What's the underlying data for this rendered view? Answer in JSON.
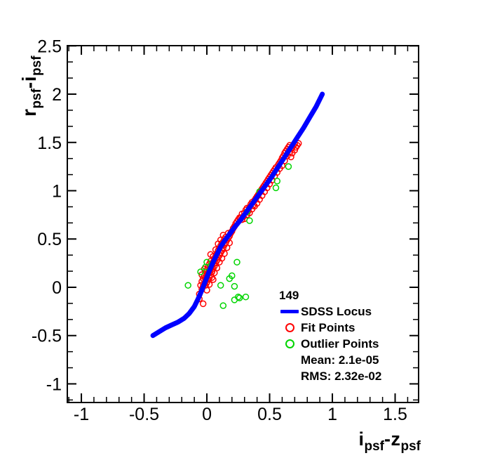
{
  "colors": {
    "locus": "#0000ff",
    "fit": "#ff0000",
    "outlier": "#00d500",
    "axis": "#000000",
    "background": "#ffffff"
  },
  "axes": {
    "x": {
      "range": [
        -1.112,
        1.687
      ],
      "major_ticks": [
        -1,
        -0.5,
        0,
        0.5,
        1,
        1.5
      ],
      "tick_labels": [
        "-1",
        "-0.5",
        "0",
        "0.5",
        "1",
        "1.5"
      ],
      "minor_step": 0.1,
      "title": {
        "base1": "i",
        "sub1": "psf",
        "base2": "-z",
        "sub2": "psf"
      }
    },
    "y": {
      "range": [
        -1.193,
        2.502
      ],
      "major_ticks": [
        2.5,
        2,
        1.5,
        1,
        0.5,
        0,
        -0.5,
        -1
      ],
      "tick_labels": [
        "2.5",
        "2",
        "1.5",
        "1",
        "0.5",
        "0",
        "-0.5",
        "-1"
      ],
      "minor_per_major": 3,
      "title": {
        "base1": "r",
        "sub1": "psf",
        "base2": "-i",
        "sub2": "psf"
      }
    }
  },
  "legend": {
    "header": "149",
    "entries": [
      {
        "label": "SDSS Locus",
        "marker": "line",
        "color": "#0000ff"
      },
      {
        "label": "Fit Points",
        "marker": "open-circle",
        "color": "#ff0000"
      },
      {
        "label": "Outlier Points",
        "marker": "open-circle",
        "color": "#00d500"
      },
      {
        "label": "Mean: 2.1e-05",
        "marker": "none"
      },
      {
        "label": "RMS: 2.32e-02",
        "marker": "none"
      }
    ]
  },
  "chart_data": {
    "type": "scatter",
    "xlabel": "i_psf - z_psf",
    "ylabel": "r_psf - i_psf",
    "xlim": [
      -1.112,
      1.687
    ],
    "ylim": [
      -1.193,
      2.502
    ],
    "grid": false,
    "legend_position": "lower-right",
    "stats": {
      "n_points": "149",
      "mean": "2.1e-05",
      "rms": "2.32e-02"
    },
    "series": [
      {
        "name": "SDSS Locus",
        "type": "line",
        "color": "#0000ff",
        "line_width": 7,
        "points": [
          [
            -0.43,
            -0.5
          ],
          [
            -0.38,
            -0.46
          ],
          [
            -0.33,
            -0.42
          ],
          [
            -0.28,
            -0.39
          ],
          [
            -0.23,
            -0.36
          ],
          [
            -0.18,
            -0.32
          ],
          [
            -0.14,
            -0.27
          ],
          [
            -0.1,
            -0.2
          ],
          [
            -0.07,
            -0.12
          ],
          [
            -0.04,
            -0.03
          ],
          [
            -0.01,
            0.07
          ],
          [
            0.02,
            0.17
          ],
          [
            0.05,
            0.26
          ],
          [
            0.08,
            0.34
          ],
          [
            0.11,
            0.42
          ],
          [
            0.14,
            0.48
          ],
          [
            0.18,
            0.55
          ],
          [
            0.22,
            0.62
          ],
          [
            0.27,
            0.7
          ],
          [
            0.32,
            0.79
          ],
          [
            0.37,
            0.88
          ],
          [
            0.42,
            0.97
          ],
          [
            0.47,
            1.06
          ],
          [
            0.52,
            1.15
          ],
          [
            0.57,
            1.25
          ],
          [
            0.62,
            1.35
          ],
          [
            0.67,
            1.45
          ],
          [
            0.72,
            1.55
          ],
          [
            0.77,
            1.65
          ],
          [
            0.82,
            1.76
          ],
          [
            0.87,
            1.87
          ],
          [
            0.92,
            2.0
          ]
        ]
      },
      {
        "name": "Fit Points",
        "type": "scatter",
        "marker": "open-circle",
        "color": "#ff0000",
        "points": [
          [
            -0.06,
            -0.07
          ],
          [
            -0.05,
            0.02
          ],
          [
            -0.04,
            -0.02
          ],
          [
            -0.04,
            0.06
          ],
          [
            -0.03,
            0.01
          ],
          [
            -0.03,
            0.09
          ],
          [
            -0.02,
            0.04
          ],
          [
            -0.02,
            0.12
          ],
          [
            -0.01,
            0.02
          ],
          [
            -0.01,
            0.08
          ],
          [
            -0.01,
            0.15
          ],
          [
            0.0,
            0.05
          ],
          [
            0.0,
            0.11
          ],
          [
            0.0,
            0.18
          ],
          [
            0.01,
            0.08
          ],
          [
            0.01,
            0.14
          ],
          [
            0.01,
            0.21
          ],
          [
            0.02,
            0.1
          ],
          [
            0.02,
            0.17
          ],
          [
            0.02,
            0.24
          ],
          [
            0.03,
            0.13
          ],
          [
            0.03,
            0.2
          ],
          [
            0.03,
            0.27
          ],
          [
            0.04,
            0.16
          ],
          [
            0.04,
            0.23
          ],
          [
            0.05,
            0.19
          ],
          [
            0.05,
            0.26
          ],
          [
            0.05,
            0.32
          ],
          [
            0.06,
            0.22
          ],
          [
            0.06,
            0.29
          ],
          [
            0.07,
            0.25
          ],
          [
            0.07,
            0.32
          ],
          [
            0.08,
            0.28
          ],
          [
            0.08,
            0.35
          ],
          [
            0.09,
            0.31
          ],
          [
            0.09,
            0.38
          ],
          [
            0.1,
            0.33
          ],
          [
            0.1,
            0.4
          ],
          [
            0.11,
            0.36
          ],
          [
            0.11,
            0.43
          ],
          [
            0.12,
            0.38
          ],
          [
            0.12,
            0.45
          ],
          [
            0.13,
            0.41
          ],
          [
            0.13,
            0.47
          ],
          [
            0.14,
            0.44
          ],
          [
            0.14,
            0.5
          ],
          [
            0.15,
            0.46
          ],
          [
            0.15,
            0.52
          ],
          [
            0.16,
            0.49
          ],
          [
            0.17,
            0.51
          ],
          [
            0.17,
            0.56
          ],
          [
            0.18,
            0.53
          ],
          [
            0.19,
            0.56
          ],
          [
            0.2,
            0.58
          ],
          [
            0.21,
            0.61
          ],
          [
            0.22,
            0.63
          ],
          [
            0.23,
            0.66
          ],
          [
            0.24,
            0.68
          ],
          [
            0.25,
            0.7
          ],
          [
            0.26,
            0.72
          ],
          [
            0.04,
            0.1
          ],
          [
            0.06,
            0.15
          ],
          [
            0.08,
            0.2
          ],
          [
            0.1,
            0.26
          ],
          [
            0.12,
            0.3
          ],
          [
            0.14,
            0.35
          ],
          [
            0.16,
            0.41
          ],
          [
            0.18,
            0.46
          ],
          [
            0.02,
            0.03
          ],
          [
            0.05,
            0.08
          ],
          [
            0.09,
            0.45
          ],
          [
            0.07,
            0.39
          ],
          [
            0.11,
            0.49
          ],
          [
            0.13,
            0.54
          ],
          [
            0.0,
            -0.03
          ],
          [
            0.03,
            0.34
          ],
          [
            -0.02,
            0.19
          ],
          [
            -0.04,
            0.13
          ],
          [
            -0.06,
            -0.12
          ],
          [
            -0.03,
            -0.17
          ],
          [
            0.27,
            0.72
          ],
          [
            0.28,
            0.7
          ],
          [
            0.28,
            0.76
          ],
          [
            0.29,
            0.73
          ],
          [
            0.3,
            0.77
          ],
          [
            0.3,
            0.71
          ],
          [
            0.31,
            0.8
          ],
          [
            0.32,
            0.75
          ],
          [
            0.32,
            0.82
          ],
          [
            0.33,
            0.79
          ],
          [
            0.34,
            0.83
          ],
          [
            0.34,
            0.77
          ],
          [
            0.35,
            0.86
          ],
          [
            0.36,
            0.81
          ],
          [
            0.36,
            0.88
          ],
          [
            0.37,
            0.85
          ],
          [
            0.38,
            0.9
          ],
          [
            0.38,
            0.84
          ],
          [
            0.39,
            0.92
          ],
          [
            0.4,
            0.87
          ],
          [
            0.4,
            0.94
          ],
          [
            0.41,
            0.96
          ],
          [
            0.42,
            0.91
          ],
          [
            0.42,
            0.98
          ],
          [
            0.43,
            1.0
          ],
          [
            0.44,
            0.95
          ],
          [
            0.44,
            1.02
          ],
          [
            0.45,
            1.04
          ],
          [
            0.46,
            0.99
          ],
          [
            0.46,
            1.06
          ],
          [
            0.47,
            1.08
          ],
          [
            0.48,
            1.03
          ],
          [
            0.48,
            1.1
          ],
          [
            0.49,
            1.12
          ],
          [
            0.5,
            1.07
          ],
          [
            0.5,
            1.14
          ],
          [
            0.51,
            1.16
          ],
          [
            0.52,
            1.11
          ],
          [
            0.52,
            1.18
          ],
          [
            0.53,
            1.2
          ],
          [
            0.54,
            1.15
          ],
          [
            0.54,
            1.22
          ],
          [
            0.55,
            1.24
          ],
          [
            0.56,
            1.19
          ],
          [
            0.57,
            1.27
          ],
          [
            0.58,
            1.29
          ],
          [
            0.58,
            1.23
          ],
          [
            0.59,
            1.31
          ],
          [
            0.6,
            1.26
          ],
          [
            0.6,
            1.34
          ],
          [
            0.61,
            1.36
          ],
          [
            0.62,
            1.31
          ],
          [
            0.62,
            1.39
          ],
          [
            0.63,
            1.41
          ],
          [
            0.64,
            1.36
          ],
          [
            0.64,
            1.43
          ],
          [
            0.65,
            1.45
          ],
          [
            0.66,
            1.4
          ],
          [
            0.66,
            1.47
          ],
          [
            0.67,
            1.43
          ],
          [
            0.67,
            1.35
          ],
          [
            0.68,
            1.45
          ],
          [
            0.68,
            1.39
          ],
          [
            0.69,
            1.47
          ],
          [
            0.7,
            1.42
          ],
          [
            0.7,
            1.49
          ],
          [
            0.71,
            1.45
          ],
          [
            0.72,
            1.47
          ],
          [
            0.73,
            1.49
          ]
        ]
      },
      {
        "name": "Outlier Points",
        "type": "scatter",
        "marker": "open-circle",
        "color": "#00d500",
        "points": [
          [
            -0.15,
            0.02
          ],
          [
            -0.05,
            0.16
          ],
          [
            -0.01,
            0.21
          ],
          [
            0.0,
            0.26
          ],
          [
            0.11,
            0.02
          ],
          [
            0.22,
            0.01
          ],
          [
            0.18,
            0.09
          ],
          [
            0.2,
            0.12
          ],
          [
            0.24,
            0.26
          ],
          [
            0.26,
            -0.11
          ],
          [
            0.22,
            -0.13
          ],
          [
            0.13,
            -0.19
          ],
          [
            0.31,
            -0.1
          ],
          [
            0.25,
            -0.1
          ],
          [
            0.32,
            0.78
          ],
          [
            0.34,
            0.69
          ],
          [
            0.42,
            0.99
          ],
          [
            0.55,
            1.03
          ],
          [
            0.56,
            1.1
          ],
          [
            0.65,
            1.25
          ]
        ]
      }
    ]
  }
}
